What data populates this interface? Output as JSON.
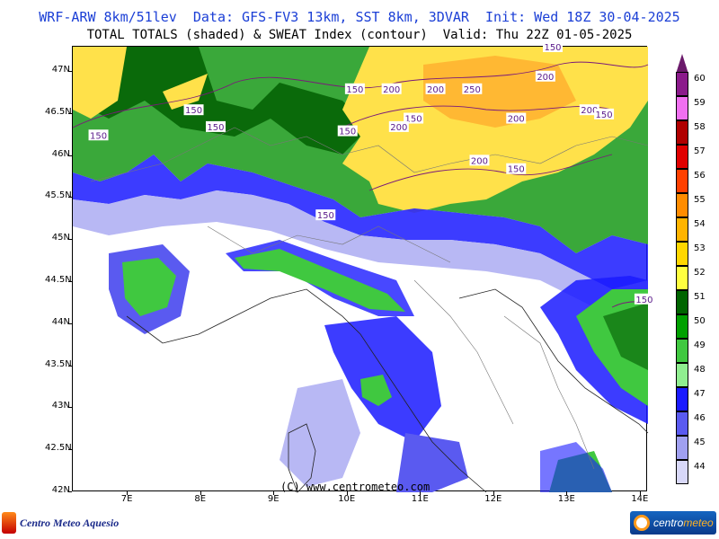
{
  "header": {
    "line1": "WRF-ARW 8km/51lev  Data: GFS-FV3 13km, SST 8km, 3DVAR  Init: Wed 18Z 30-04-2025",
    "line2": "TOTAL TOTALS (shaded) & SWEAT Index (contour)  Valid: Thu 22Z 01-05-2025"
  },
  "map": {
    "lon_range": [
      6.25,
      14.1
    ],
    "lat_range": [
      42.0,
      47.3
    ],
    "y_axis_labels": [
      "47N",
      "46.5N",
      "46N",
      "45.5N",
      "45N",
      "44.5N",
      "44N",
      "43.5N",
      "43N",
      "42.5N",
      "42N"
    ],
    "y_axis_values": [
      47,
      46.5,
      46,
      45.5,
      45,
      44.5,
      44,
      43.5,
      43,
      42.5,
      42
    ],
    "x_axis_labels": [
      "7E",
      "8E",
      "9E",
      "10E",
      "11E",
      "12E",
      "13E",
      "14E"
    ],
    "x_axis_values": [
      7,
      8,
      9,
      10,
      11,
      12,
      13,
      14
    ],
    "watermark": "(C) www.centrometeo.com",
    "contour_labels": [
      {
        "text": "150",
        "lon": 6.6,
        "lat": 46.25
      },
      {
        "text": "150",
        "lon": 7.9,
        "lat": 46.55
      },
      {
        "text": "150",
        "lon": 8.2,
        "lat": 46.35
      },
      {
        "text": "150",
        "lon": 10.1,
        "lat": 46.8
      },
      {
        "text": "200",
        "lon": 10.6,
        "lat": 46.8
      },
      {
        "text": "200",
        "lon": 11.2,
        "lat": 46.8
      },
      {
        "text": "250",
        "lon": 11.7,
        "lat": 46.8
      },
      {
        "text": "200",
        "lon": 12.7,
        "lat": 46.95
      },
      {
        "text": "150",
        "lon": 12.8,
        "lat": 47.3
      },
      {
        "text": "150",
        "lon": 10.0,
        "lat": 46.3
      },
      {
        "text": "150",
        "lon": 10.9,
        "lat": 46.45
      },
      {
        "text": "200",
        "lon": 10.7,
        "lat": 46.35
      },
      {
        "text": "200",
        "lon": 12.3,
        "lat": 46.45
      },
      {
        "text": "200",
        "lon": 13.3,
        "lat": 46.55
      },
      {
        "text": "150",
        "lon": 13.5,
        "lat": 46.5
      },
      {
        "text": "200",
        "lon": 11.8,
        "lat": 45.95
      },
      {
        "text": "150",
        "lon": 12.3,
        "lat": 45.85
      },
      {
        "text": "150",
        "lon": 9.7,
        "lat": 45.3
      },
      {
        "text": "150",
        "lon": 14.05,
        "lat": 44.3
      }
    ]
  },
  "colorbar": {
    "levels": [
      "60",
      "59",
      "58",
      "57",
      "56",
      "55",
      "54",
      "53",
      "52",
      "51",
      "50",
      "49",
      "48",
      "47",
      "46",
      "45",
      "44"
    ],
    "colors": [
      "#8b1a8b",
      "#f070f0",
      "#b00000",
      "#e00000",
      "#ff4000",
      "#ff8c00",
      "#ffb400",
      "#ffd700",
      "#ffff40",
      "#006400",
      "#00a000",
      "#40c840",
      "#90ee90",
      "#1a1aff",
      "#5a5af0",
      "#a0a0f0",
      "#d8d8f8"
    ]
  },
  "logos": {
    "left_text": "Centro Meteo Aquesio",
    "right_text_a": "centro",
    "right_text_b": "meteo"
  }
}
